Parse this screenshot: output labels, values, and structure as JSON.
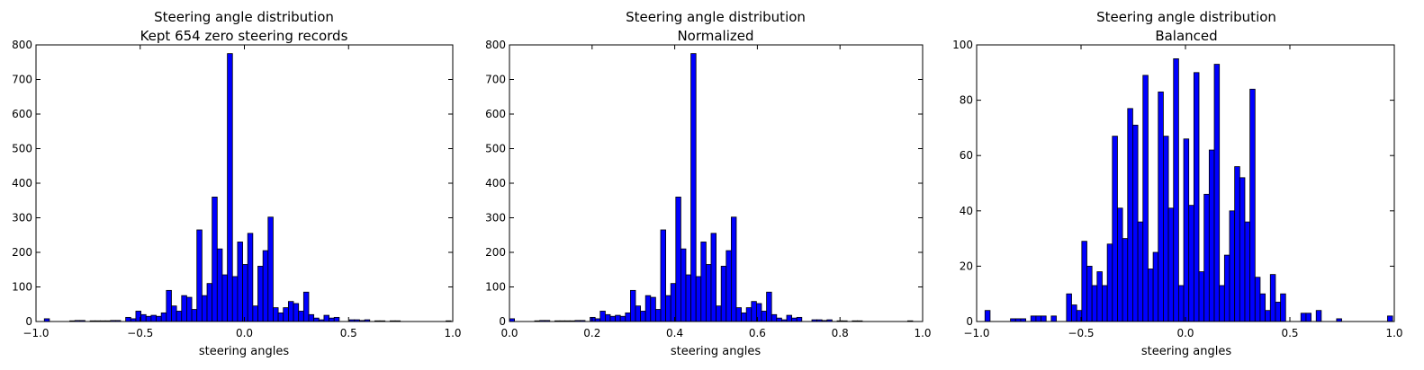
{
  "chart_data": [
    {
      "type": "bar",
      "title_line1": "Steering angle distribution",
      "title_line2": "Kept 654 zero steering records",
      "xlabel": "steering angles",
      "ylabel": "",
      "xlim": [
        -1.0,
        1.0
      ],
      "ylim": [
        0,
        800
      ],
      "xticks": [
        -1.0,
        -0.5,
        0.0,
        0.5,
        1.0
      ],
      "xtick_labels": [
        "−1.0",
        "−0.5",
        "0.0",
        "0.5",
        "1.0"
      ],
      "yticks": [
        0,
        100,
        200,
        300,
        400,
        500,
        600,
        700,
        800
      ],
      "ytick_labels": [
        "0",
        "100",
        "200",
        "300",
        "400",
        "500",
        "600",
        "700",
        "800"
      ],
      "bin_start": -0.96,
      "bin_width": 0.0244,
      "values": [
        8,
        0,
        0,
        0,
        0,
        2,
        3,
        3,
        0,
        2,
        2,
        2,
        2,
        3,
        3,
        0,
        12,
        8,
        30,
        20,
        15,
        18,
        15,
        25,
        90,
        45,
        30,
        75,
        70,
        35,
        265,
        75,
        110,
        360,
        210,
        135,
        775,
        130,
        230,
        165,
        255,
        45,
        160,
        205,
        302,
        40,
        25,
        40,
        58,
        52,
        30,
        85,
        20,
        10,
        5,
        18,
        10,
        12,
        0,
        0,
        5,
        5,
        3,
        5,
        0,
        2,
        2,
        0,
        2,
        2,
        0,
        0,
        0,
        0,
        0,
        0,
        0,
        0,
        0,
        2
      ]
    },
    {
      "type": "bar",
      "title_line1": "Steering angle distribution",
      "title_line2": "Normalized",
      "xlabel": "steering angles",
      "ylabel": "",
      "xlim": [
        0.0,
        1.0
      ],
      "ylim": [
        0,
        800
      ],
      "xticks": [
        0.0,
        0.2,
        0.4,
        0.6,
        0.8,
        1.0
      ],
      "xtick_labels": [
        "0.0",
        "0.2",
        "0.4",
        "0.6",
        "0.8",
        "1.0"
      ],
      "yticks": [
        0,
        100,
        200,
        300,
        400,
        500,
        600,
        700,
        800
      ],
      "ytick_labels": [
        "0",
        "100",
        "200",
        "300",
        "400",
        "500",
        "600",
        "700",
        "800"
      ],
      "bin_start": 0.0,
      "bin_width": 0.0122,
      "values": [
        8,
        0,
        0,
        0,
        0,
        2,
        3,
        3,
        0,
        2,
        2,
        2,
        2,
        3,
        3,
        0,
        12,
        8,
        30,
        20,
        15,
        18,
        15,
        25,
        90,
        45,
        30,
        75,
        70,
        35,
        265,
        75,
        110,
        360,
        210,
        135,
        775,
        130,
        230,
        165,
        255,
        45,
        160,
        205,
        302,
        40,
        25,
        40,
        58,
        52,
        30,
        85,
        20,
        10,
        5,
        18,
        10,
        12,
        0,
        0,
        5,
        5,
        3,
        5,
        0,
        2,
        2,
        0,
        2,
        2,
        0,
        0,
        0,
        0,
        0,
        0,
        0,
        0,
        0,
        2
      ]
    },
    {
      "type": "bar",
      "title_line1": "Steering angle distribution",
      "title_line2": "Balanced",
      "xlabel": "steering angles",
      "ylabel": "",
      "xlim": [
        -1.0,
        1.0
      ],
      "ylim": [
        0,
        100
      ],
      "xticks": [
        -1.0,
        -0.5,
        0.0,
        0.5,
        1.0
      ],
      "xtick_labels": [
        "−1.0",
        "−0.5",
        "0.0",
        "0.5",
        "1.0"
      ],
      "yticks": [
        0,
        20,
        40,
        60,
        80,
        100
      ],
      "ytick_labels": [
        "0",
        "20",
        "40",
        "60",
        "80",
        "100"
      ],
      "bin_start": -0.96,
      "bin_width": 0.0244,
      "values": [
        4,
        0,
        0,
        0,
        0,
        1,
        1,
        1,
        0,
        2,
        2,
        2,
        0,
        2,
        0,
        0,
        10,
        6,
        4,
        29,
        20,
        13,
        18,
        13,
        28,
        67,
        41,
        30,
        77,
        71,
        36,
        89,
        19,
        25,
        83,
        67,
        41,
        95,
        13,
        66,
        42,
        90,
        18,
        46,
        62,
        93,
        13,
        24,
        40,
        56,
        52,
        36,
        84,
        16,
        10,
        4,
        17,
        7,
        10,
        0,
        0,
        0,
        3,
        3,
        0,
        4,
        0,
        0,
        0,
        1,
        0,
        0,
        0,
        0,
        0,
        0,
        0,
        0,
        0,
        2
      ]
    }
  ],
  "style": {
    "bar_color": "#0000ff",
    "edge_color": "#000000",
    "background": "#ffffff"
  }
}
